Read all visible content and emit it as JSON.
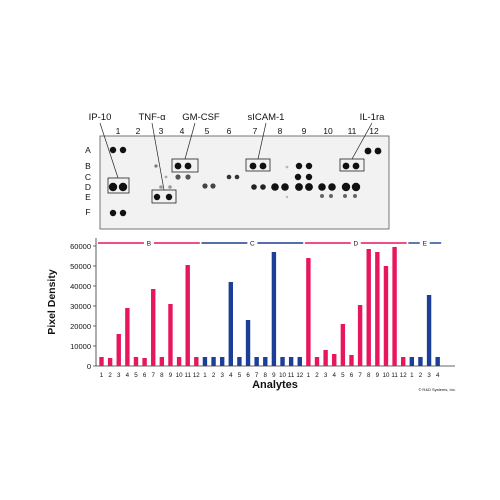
{
  "blot": {
    "column_numbers": [
      "1",
      "2",
      "3",
      "4",
      "5",
      "6",
      "7",
      "8",
      "9",
      "10",
      "11",
      "12"
    ],
    "row_letters": [
      "A",
      "B",
      "C",
      "D",
      "E",
      "F"
    ],
    "callouts": [
      "IP-10",
      "TNF-α",
      "GM-CSF",
      "sICAM-1",
      "IL-1ra"
    ]
  },
  "credit": "© R&D Systems, Inc.",
  "chart_data": {
    "type": "bar",
    "xlabel": "Analytes",
    "ylabel": "Pixel Density",
    "ylim": [
      0,
      65000
    ],
    "yticks": [
      0,
      10000,
      20000,
      30000,
      40000,
      50000,
      60000
    ],
    "ytick_labels": [
      "0",
      "10000",
      "20000",
      "30000",
      "40000",
      "50000",
      "60000"
    ],
    "grid": false,
    "groups": [
      {
        "name": "B",
        "color": "#e8175d",
        "categories": [
          "1",
          "2",
          "3",
          "4",
          "5",
          "6",
          "7",
          "8",
          "9",
          "10",
          "11",
          "12"
        ],
        "values": [
          4500,
          4000,
          16000,
          29000,
          4500,
          4000,
          38500,
          4500,
          31000,
          4500,
          50500,
          4500
        ]
      },
      {
        "name": "C",
        "color": "#1b3f96",
        "categories": [
          "1",
          "2",
          "3",
          "4",
          "5",
          "6",
          "7",
          "8",
          "9",
          "10",
          "11",
          "12"
        ],
        "values": [
          4500,
          4500,
          4500,
          42000,
          4500,
          23000,
          4500,
          4500,
          57000,
          4500,
          4500,
          4500
        ]
      },
      {
        "name": "D",
        "color": "#e8175d",
        "categories": [
          "1",
          "2",
          "3",
          "4",
          "5",
          "6",
          "7",
          "8",
          "9",
          "10",
          "11",
          "12"
        ],
        "values": [
          54000,
          4500,
          8000,
          6000,
          21000,
          5500,
          30500,
          58500,
          57000,
          50000,
          59500,
          4500
        ]
      },
      {
        "name": "E",
        "color": "#1b3f96",
        "categories": [
          "1",
          "2",
          "3",
          "4"
        ],
        "values": [
          4500,
          4500,
          35500,
          4500
        ]
      }
    ]
  }
}
